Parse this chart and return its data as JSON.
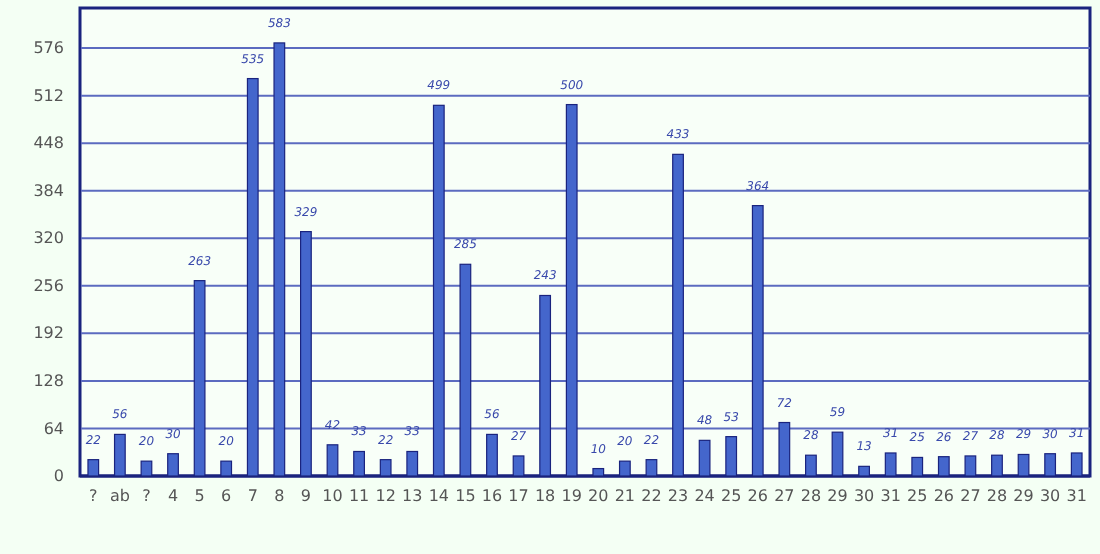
{
  "chart_data": {
    "type": "bar",
    "categories": [
      "?",
      "ab",
      "?",
      "4",
      "5",
      "6",
      "7",
      "8",
      "9",
      "10",
      "11",
      "12",
      "13",
      "14",
      "15",
      "16",
      "17",
      "18",
      "19",
      "20",
      "21",
      "22",
      "23",
      "24",
      "25",
      "26",
      "27",
      "28",
      "29",
      "30",
      "31",
      "25",
      "26",
      "27",
      "28",
      "29",
      "30",
      "31"
    ],
    "values": [
      22,
      56,
      20,
      30,
      263,
      20,
      535,
      583,
      329,
      42,
      33,
      22,
      33,
      499,
      285,
      56,
      27,
      243,
      500,
      10,
      20,
      22,
      433,
      48,
      53,
      364,
      72,
      28,
      59,
      13,
      31,
      25,
      26,
      27,
      28,
      29,
      30,
      31
    ],
    "color": "#4466cc",
    "ylim": [
      0,
      630
    ],
    "yticks": [
      0,
      64,
      128,
      192,
      256,
      320,
      384,
      448,
      512,
      576
    ],
    "grid": "y",
    "data_labels": true
  }
}
